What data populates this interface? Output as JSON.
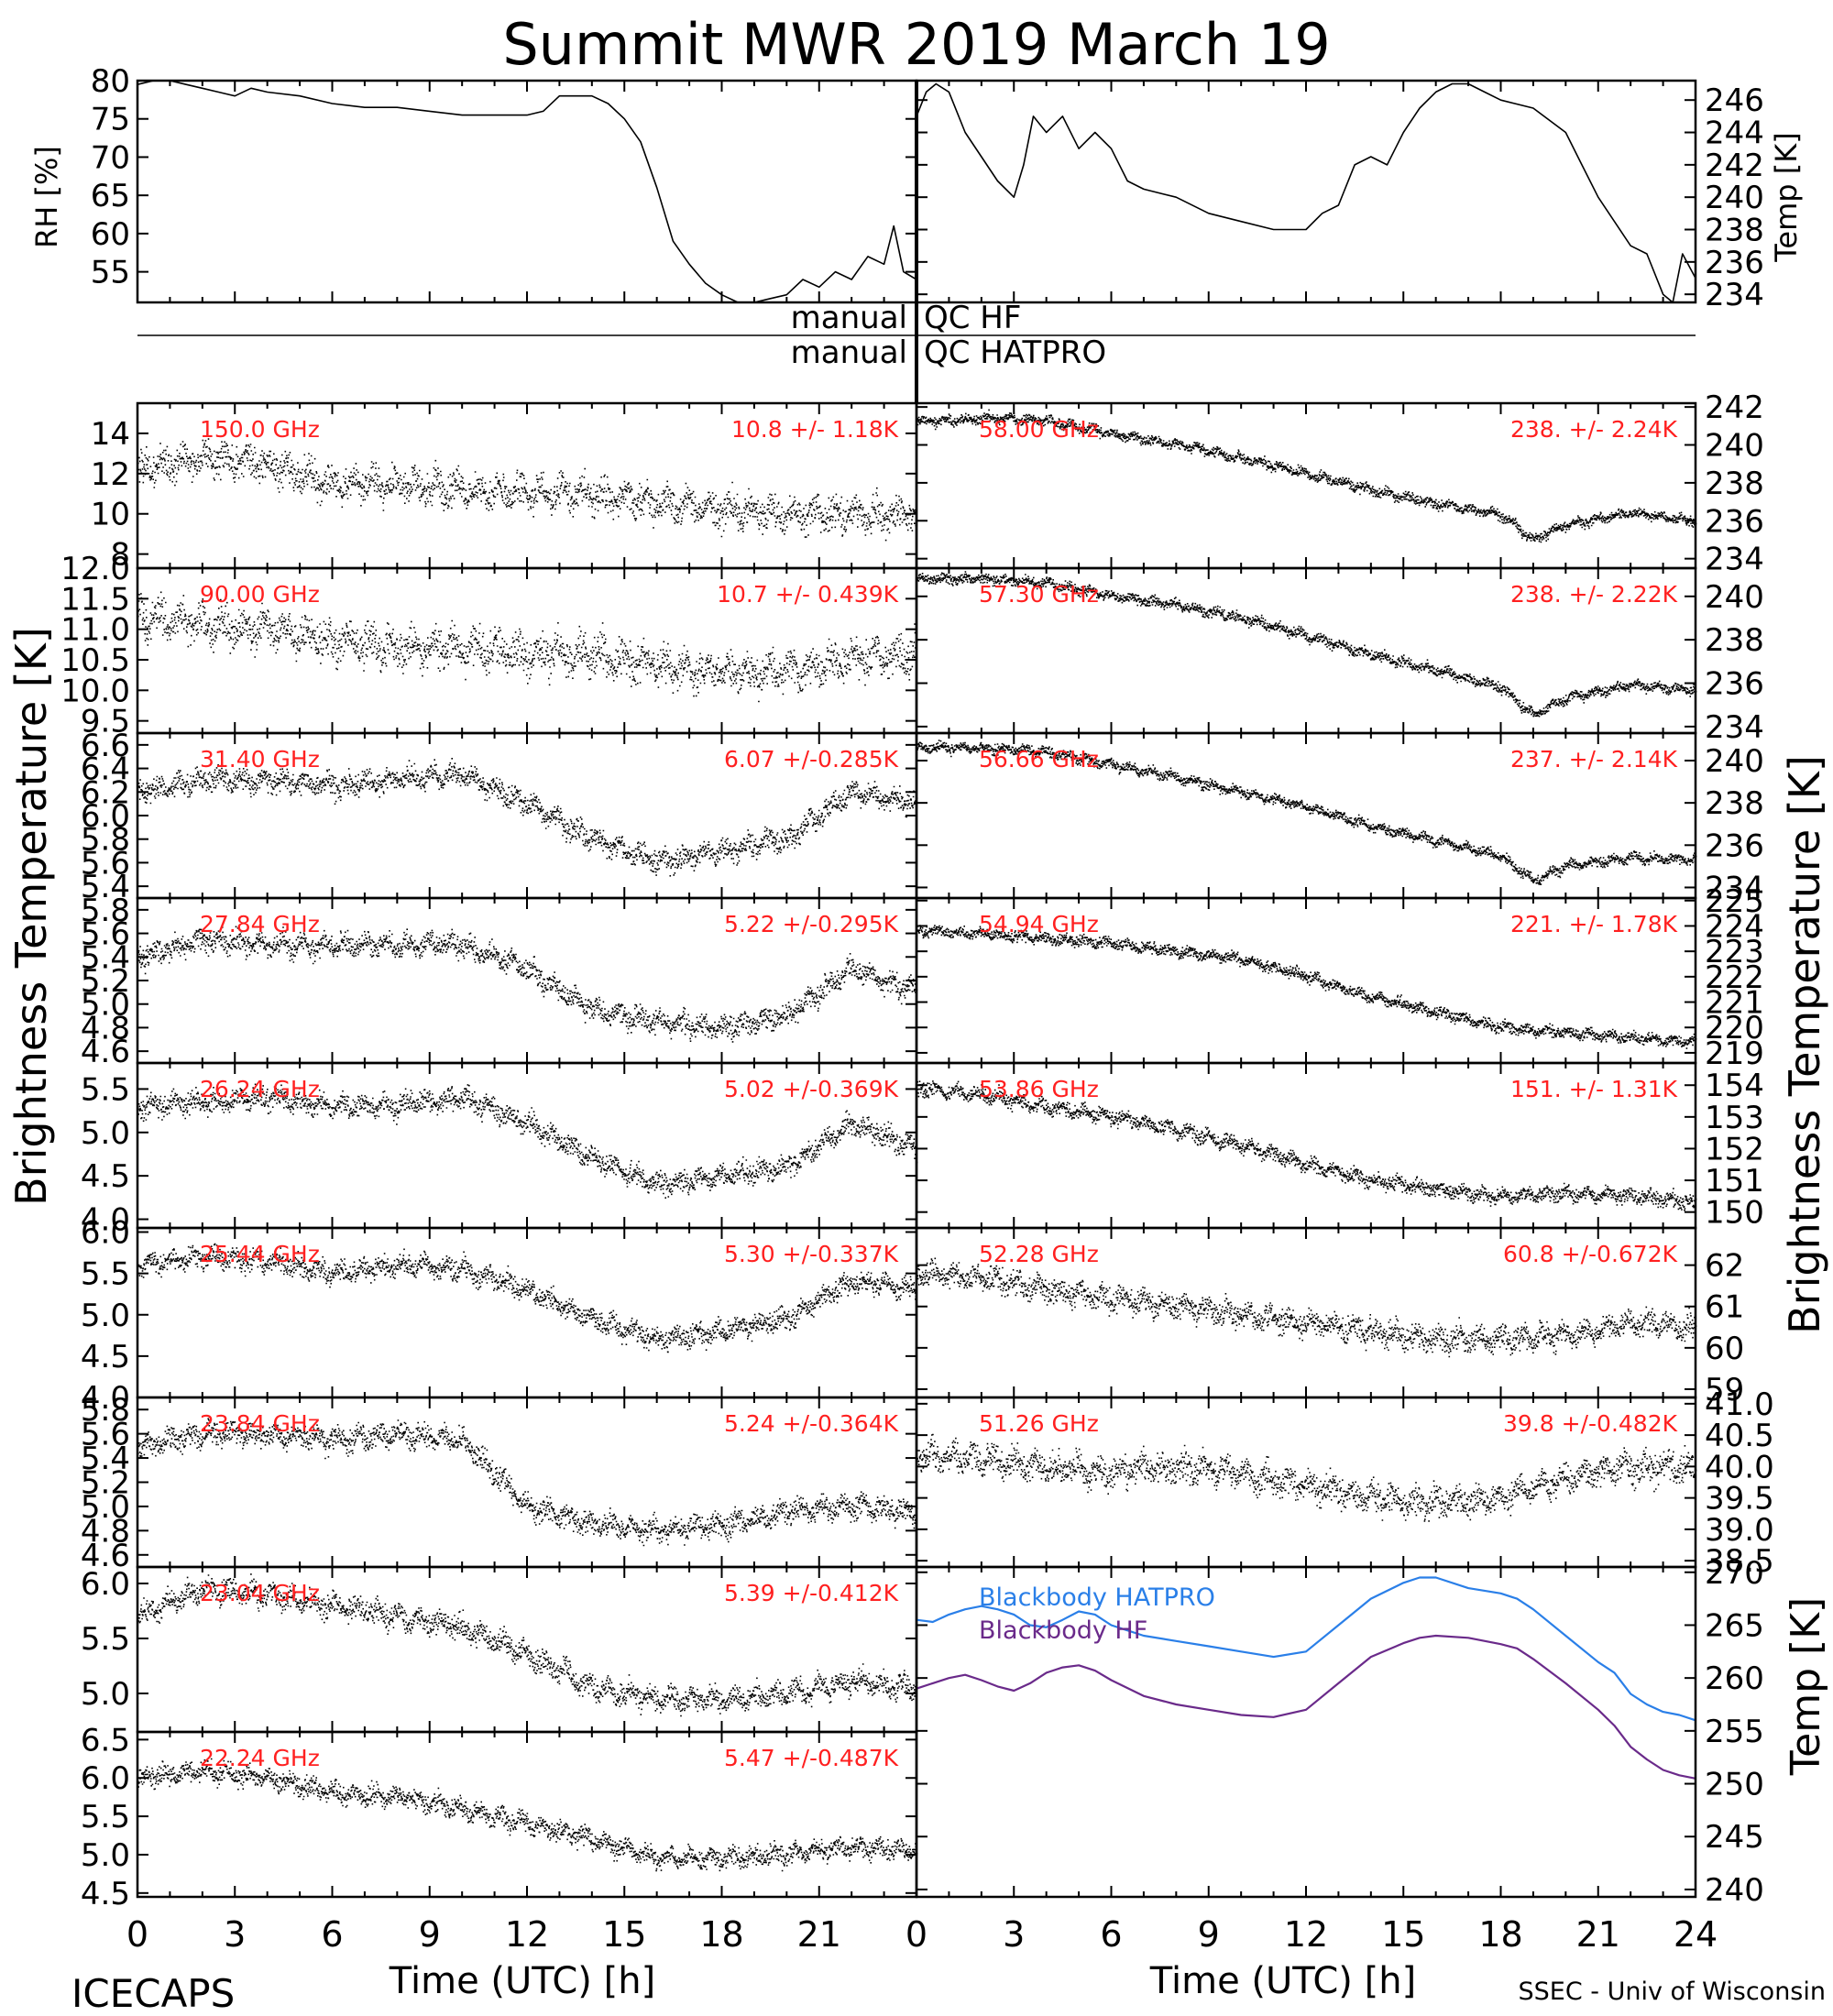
{
  "title": "Summit MWR 2019 March 19",
  "footer": {
    "left": "ICECAPS",
    "right": "SSEC - Univ of Wisconsin"
  },
  "axis_labels": {
    "x_left": "Time (UTC) [h]",
    "x_right": "Time (UTC) [h]",
    "y_left_main": "Brightness Temperature [K]",
    "y_right_main": "Brightness Temperature [K]",
    "rh": "RH [%]",
    "temp_top": "Temp [K]",
    "temp_bottom": "Temp [K]"
  },
  "qc": {
    "hf_left": "manual",
    "hf_right": "QC HF",
    "hatpro_left": "manual",
    "hatpro_right": "QC HATPRO"
  },
  "colors": {
    "label_red": "#ff2020",
    "blackbody_hatpro": "#2a7fe8",
    "blackbody_hf": "#6a2a8a"
  },
  "chart_data": [
    {
      "id": "rh",
      "type": "line",
      "ylabel": "RH [%]",
      "ylim": [
        51,
        80
      ],
      "ticks": [
        55,
        60,
        65,
        70,
        75,
        80
      ],
      "xlim": [
        0,
        24
      ],
      "x": [
        0,
        0.5,
        1,
        1.5,
        2,
        2.5,
        3,
        3.5,
        4,
        5,
        6,
        7,
        8,
        9,
        10,
        11,
        12,
        12.5,
        13,
        14,
        14.5,
        15,
        15.5,
        16,
        16.5,
        17,
        17.5,
        18,
        18.5,
        19,
        19.5,
        20,
        20.5,
        21,
        21.5,
        22,
        22.5,
        23,
        23.3,
        23.6,
        24
      ],
      "y": [
        79.5,
        80,
        80,
        79.5,
        79,
        78.5,
        78,
        79,
        78.5,
        78,
        77,
        76.5,
        76.5,
        76,
        75.5,
        75.5,
        75.5,
        76,
        78,
        78,
        77,
        75,
        72,
        66,
        59,
        56,
        53.5,
        52,
        51,
        51,
        51.5,
        52,
        54,
        53,
        55,
        54,
        57,
        56,
        61,
        55,
        54
      ]
    },
    {
      "id": "temp_top",
      "type": "line",
      "ylabel": "Temp [K]",
      "ylim": [
        233.5,
        247.2
      ],
      "ticks": [
        234,
        236,
        238,
        240,
        242,
        244,
        246
      ],
      "xlim": [
        0,
        24
      ],
      "x": [
        0,
        0.3,
        0.6,
        1,
        1.5,
        2,
        2.5,
        3,
        3.3,
        3.6,
        4,
        4.5,
        5,
        5.5,
        6,
        6.5,
        7,
        8,
        9,
        10,
        11,
        12,
        12.5,
        13,
        13.5,
        14,
        14.5,
        15,
        15.5,
        16,
        16.5,
        17,
        17.5,
        18,
        19,
        20,
        20.5,
        21,
        21.5,
        22,
        22.5,
        23,
        23.3,
        23.6,
        24
      ],
      "y": [
        245,
        246.5,
        247,
        246.5,
        244,
        242.5,
        241,
        240,
        242,
        245,
        244,
        245,
        243,
        244,
        243,
        241,
        240.5,
        240,
        239,
        238.5,
        238,
        238,
        239,
        239.5,
        242,
        242.5,
        242,
        244,
        245.5,
        246.5,
        247,
        247,
        246.5,
        246,
        245.5,
        244,
        242,
        240,
        238.5,
        237,
        236.5,
        234,
        233.5,
        236.5,
        235
      ]
    },
    {
      "id": "ch_150",
      "type": "scatter",
      "label": "150.0 GHz",
      "stat": "10.8 +/-  1.18K",
      "side": "left",
      "ylim": [
        7.3,
        15.5
      ],
      "ticks": [
        8,
        10,
        12,
        14
      ],
      "tick_format": "0",
      "noise": 0.8,
      "x": [
        0,
        2,
        4,
        6,
        8,
        10,
        12,
        14,
        16,
        18,
        20,
        22,
        24
      ],
      "y": [
        12.2,
        12.8,
        12.5,
        11.5,
        11.5,
        11.2,
        11.0,
        11.0,
        10.5,
        10.2,
        10.0,
        10.0,
        10.0
      ]
    },
    {
      "id": "ch_90",
      "type": "scatter",
      "label": "90.00 GHz",
      "stat": "10.7 +/- 0.439K",
      "side": "left",
      "ylim": [
        9.3,
        12.0
      ],
      "ticks": [
        9.5,
        10.0,
        10.5,
        11.0,
        11.5,
        12.0
      ],
      "tick_format": "1",
      "noise": 0.3,
      "x": [
        0,
        2,
        4,
        6,
        8,
        10,
        12,
        14,
        16,
        18,
        20,
        22,
        24
      ],
      "y": [
        11.2,
        11.1,
        11.0,
        10.8,
        10.7,
        10.7,
        10.6,
        10.6,
        10.4,
        10.3,
        10.3,
        10.5,
        10.6
      ]
    },
    {
      "id": "ch_31",
      "type": "scatter",
      "label": "31.40 GHz",
      "stat": "6.07 +/-0.285K",
      "side": "left",
      "ylim": [
        5.3,
        6.7
      ],
      "ticks": [
        5.4,
        5.6,
        5.8,
        6.0,
        6.2,
        6.4,
        6.6
      ],
      "tick_format": "1",
      "noise": 0.09,
      "x": [
        0,
        2,
        4,
        6,
        8,
        10,
        12,
        14,
        16,
        18,
        20,
        22,
        24
      ],
      "y": [
        6.2,
        6.3,
        6.3,
        6.25,
        6.3,
        6.35,
        6.1,
        5.8,
        5.6,
        5.7,
        5.8,
        6.2,
        6.1
      ]
    },
    {
      "id": "ch_27",
      "type": "scatter",
      "label": "27.84 GHz",
      "stat": "5.22 +/-0.295K",
      "side": "left",
      "ylim": [
        4.5,
        5.9
      ],
      "ticks": [
        4.6,
        4.8,
        5.0,
        5.2,
        5.4,
        5.6,
        5.8
      ],
      "tick_format": "1",
      "noise": 0.09,
      "x": [
        0,
        2,
        4,
        6,
        8,
        10,
        12,
        14,
        16,
        18,
        20,
        22,
        24
      ],
      "y": [
        5.4,
        5.55,
        5.5,
        5.5,
        5.5,
        5.5,
        5.3,
        4.95,
        4.85,
        4.8,
        4.9,
        5.3,
        5.1
      ]
    },
    {
      "id": "ch_26",
      "type": "scatter",
      "label": "26.24 GHz",
      "stat": "5.02 +/-0.369K",
      "side": "left",
      "ylim": [
        3.9,
        5.8
      ],
      "ticks": [
        4.0,
        4.5,
        5.0,
        5.5
      ],
      "tick_format": "1",
      "noise": 0.12,
      "x": [
        0,
        2,
        4,
        6,
        8,
        10,
        12,
        14,
        16,
        18,
        20,
        22,
        24
      ],
      "y": [
        5.3,
        5.35,
        5.4,
        5.3,
        5.3,
        5.4,
        5.1,
        4.7,
        4.4,
        4.5,
        4.6,
        5.1,
        4.8
      ]
    },
    {
      "id": "ch_25",
      "type": "scatter",
      "label": "25.44 GHz",
      "stat": "5.30 +/-0.337K",
      "side": "left",
      "ylim": [
        4.0,
        6.05
      ],
      "ticks": [
        4.0,
        4.5,
        5.0,
        5.5,
        6.0
      ],
      "tick_format": "1",
      "noise": 0.12,
      "x": [
        0,
        2,
        4,
        6,
        8,
        10,
        12,
        14,
        16,
        18,
        20,
        22,
        24
      ],
      "y": [
        5.6,
        5.7,
        5.65,
        5.5,
        5.6,
        5.55,
        5.3,
        4.95,
        4.7,
        4.8,
        4.95,
        5.4,
        5.3
      ]
    },
    {
      "id": "ch_23_84",
      "type": "scatter",
      "label": "23.84 GHz",
      "stat": "5.24 +/-0.364K",
      "side": "left",
      "ylim": [
        4.5,
        5.9
      ],
      "ticks": [
        4.6,
        4.8,
        5.0,
        5.2,
        5.4,
        5.6,
        5.8
      ],
      "tick_format": "1",
      "noise": 0.09,
      "x": [
        0,
        2,
        4,
        6,
        8,
        10,
        12,
        14,
        16,
        18,
        20,
        22,
        24
      ],
      "y": [
        5.5,
        5.6,
        5.6,
        5.55,
        5.6,
        5.55,
        5.0,
        4.85,
        4.8,
        4.85,
        4.95,
        5.0,
        4.95
      ]
    },
    {
      "id": "ch_23_04",
      "type": "scatter",
      "label": "23.04 GHz",
      "stat": "5.39 +/-0.412K",
      "side": "left",
      "ylim": [
        4.65,
        6.15
      ],
      "ticks": [
        5.0,
        5.5,
        6.0
      ],
      "tick_format": "1",
      "noise": 0.1,
      "x": [
        0,
        2,
        4,
        6,
        8,
        10,
        12,
        14,
        16,
        18,
        20,
        22,
        24
      ],
      "y": [
        5.7,
        5.95,
        5.9,
        5.8,
        5.7,
        5.6,
        5.35,
        5.05,
        4.95,
        4.95,
        5.0,
        5.1,
        5.05
      ]
    },
    {
      "id": "ch_22",
      "type": "scatter",
      "label": "22.24 GHz",
      "stat": "5.47 +/-0.487K",
      "side": "left",
      "ylim": [
        4.45,
        6.6
      ],
      "ticks": [
        4.5,
        5.0,
        5.5,
        6.0,
        6.5
      ],
      "tick_format": "1",
      "noise": 0.12,
      "x": [
        0,
        2,
        4,
        6,
        8,
        10,
        12,
        14,
        16,
        18,
        20,
        22,
        24
      ],
      "y": [
        6.0,
        6.1,
        6.0,
        5.8,
        5.75,
        5.6,
        5.4,
        5.2,
        4.95,
        4.95,
        5.0,
        5.1,
        5.05
      ]
    },
    {
      "id": "ch_58",
      "type": "scatter",
      "label": "58.00 GHz",
      "stat": "238. +/- 2.24K",
      "side": "right",
      "ylim": [
        233.5,
        242.2
      ],
      "ticks": [
        234,
        236,
        238,
        240,
        242
      ],
      "tick_format": "0",
      "noise": 0.25,
      "x": [
        0,
        2,
        4,
        6,
        8,
        10,
        12,
        14,
        16,
        18,
        19,
        20,
        22,
        24
      ],
      "y": [
        241.2,
        241.4,
        241.3,
        240.6,
        240.0,
        239.3,
        238.5,
        237.6,
        236.9,
        236.3,
        235.0,
        235.8,
        236.4,
        236.0
      ]
    },
    {
      "id": "ch_57",
      "type": "scatter",
      "label": "57.30 GHz",
      "stat": "238. +/- 2.22K",
      "side": "right",
      "ylim": [
        233.7,
        241.3
      ],
      "ticks": [
        234,
        236,
        238,
        240
      ],
      "tick_format": "0",
      "noise": 0.22,
      "x": [
        0,
        2,
        4,
        6,
        8,
        10,
        12,
        14,
        16,
        18,
        19,
        20,
        22,
        24
      ],
      "y": [
        240.8,
        240.8,
        240.6,
        240.0,
        239.6,
        239.0,
        238.2,
        237.3,
        236.6,
        235.8,
        234.5,
        235.3,
        235.9,
        235.7
      ]
    },
    {
      "id": "ch_56",
      "type": "scatter",
      "label": "56.66 GHz",
      "stat": "237. +/- 2.14K",
      "side": "right",
      "ylim": [
        233.5,
        241.3
      ],
      "ticks": [
        234,
        236,
        238,
        240
      ],
      "tick_format": "0",
      "noise": 0.22,
      "x": [
        0,
        2,
        4,
        6,
        8,
        10,
        12,
        14,
        16,
        18,
        19,
        20,
        22,
        24
      ],
      "y": [
        240.6,
        240.6,
        240.4,
        239.8,
        239.2,
        238.5,
        237.8,
        236.9,
        236.2,
        235.5,
        234.3,
        235.0,
        235.4,
        235.3
      ]
    },
    {
      "id": "ch_54",
      "type": "scatter",
      "label": "54.94 GHz",
      "stat": "221. +/- 1.78K",
      "side": "right",
      "ylim": [
        218.6,
        225.1
      ],
      "ticks": [
        219,
        220,
        221,
        222,
        223,
        224,
        225
      ],
      "tick_format": "0",
      "noise": 0.2,
      "x": [
        0,
        2,
        4,
        6,
        8,
        10,
        12,
        14,
        16,
        18,
        20,
        22,
        24
      ],
      "y": [
        223.8,
        223.7,
        223.5,
        223.3,
        223.0,
        222.7,
        222.0,
        221.2,
        220.6,
        220.0,
        219.8,
        219.6,
        219.4
      ]
    },
    {
      "id": "ch_53",
      "type": "scatter",
      "label": "53.86 GHz",
      "stat": "151. +/- 1.31K",
      "side": "right",
      "ylim": [
        149.5,
        154.7
      ],
      "ticks": [
        150,
        151,
        152,
        153,
        154
      ],
      "tick_format": "0",
      "noise": 0.22,
      "x": [
        0,
        2,
        4,
        6,
        8,
        10,
        12,
        14,
        16,
        18,
        20,
        22,
        24
      ],
      "y": [
        153.9,
        153.7,
        153.3,
        153.0,
        152.6,
        152.1,
        151.5,
        151.0,
        150.7,
        150.5,
        150.6,
        150.5,
        150.3
      ]
    },
    {
      "id": "ch_52",
      "type": "scatter",
      "label": "52.28 GHz",
      "stat": "60.8 +/-0.672K",
      "side": "right",
      "ylim": [
        58.8,
        62.9
      ],
      "ticks": [
        59,
        60,
        61,
        62
      ],
      "tick_format": "0",
      "noise": 0.28,
      "x": [
        0,
        2,
        4,
        6,
        8,
        10,
        12,
        14,
        16,
        18,
        20,
        22,
        24
      ],
      "y": [
        61.8,
        61.7,
        61.4,
        61.2,
        61.0,
        60.8,
        60.6,
        60.4,
        60.2,
        60.2,
        60.3,
        60.6,
        60.5
      ]
    },
    {
      "id": "ch_51",
      "type": "scatter",
      "label": "51.26 GHz",
      "stat": "39.8 +/-0.482K",
      "side": "right",
      "ylim": [
        38.4,
        41.1
      ],
      "ticks": [
        38.5,
        39.0,
        39.5,
        40.0,
        40.5,
        41.0
      ],
      "tick_format": "1",
      "noise": 0.22,
      "x": [
        0,
        2,
        4,
        6,
        8,
        10,
        12,
        14,
        16,
        18,
        20,
        22,
        24
      ],
      "y": [
        40.2,
        40.1,
        40.0,
        39.9,
        40.0,
        39.9,
        39.7,
        39.5,
        39.4,
        39.5,
        39.8,
        40.0,
        40.0
      ]
    },
    {
      "id": "blackbody",
      "type": "line",
      "ylabel": "Temp [K]",
      "ylim": [
        239.3,
        270.5
      ],
      "ticks": [
        240,
        245,
        250,
        255,
        260,
        265,
        270
      ],
      "xlim": [
        0,
        24
      ],
      "series": [
        {
          "name": "Blackbody HATPRO",
          "color": "#2a7fe8",
          "x": [
            0,
            0.5,
            1,
            1.5,
            2,
            2.5,
            3,
            3.5,
            4,
            4.5,
            5,
            5.5,
            6,
            7,
            8,
            9,
            10,
            11,
            12,
            13,
            14,
            15,
            15.5,
            16,
            17,
            18,
            18.5,
            19,
            20,
            21,
            21.5,
            22,
            22.5,
            23,
            23.5,
            24
          ],
          "y": [
            265.5,
            265.3,
            266.0,
            266.5,
            266.8,
            266.5,
            266.0,
            265.0,
            264.8,
            265.5,
            266.3,
            266.0,
            265.0,
            264.0,
            263.5,
            263.0,
            262.5,
            262.0,
            262.5,
            265.0,
            267.5,
            269.0,
            269.5,
            269.5,
            268.5,
            268.0,
            267.5,
            266.5,
            264.0,
            261.5,
            260.5,
            258.5,
            257.5,
            256.8,
            256.5,
            256.0
          ]
        },
        {
          "name": "Blackbody HF",
          "color": "#6a2a8a",
          "x": [
            0,
            0.5,
            1,
            1.5,
            2,
            2.5,
            3,
            3.5,
            4,
            4.5,
            5,
            5.5,
            6,
            7,
            8,
            9,
            10,
            11,
            12,
            13,
            14,
            15,
            15.5,
            16,
            17,
            18,
            18.5,
            19,
            20,
            21,
            21.5,
            22,
            22.5,
            23,
            23.5,
            24
          ],
          "y": [
            259.0,
            259.5,
            260.0,
            260.3,
            259.8,
            259.2,
            258.8,
            259.5,
            260.5,
            261.0,
            261.2,
            260.7,
            259.8,
            258.3,
            257.5,
            257.0,
            256.5,
            256.3,
            257.0,
            259.5,
            262.0,
            263.3,
            263.8,
            264.0,
            263.8,
            263.2,
            262.8,
            261.8,
            259.5,
            257.0,
            255.5,
            253.5,
            252.3,
            251.3,
            250.8,
            250.5
          ]
        }
      ]
    }
  ]
}
